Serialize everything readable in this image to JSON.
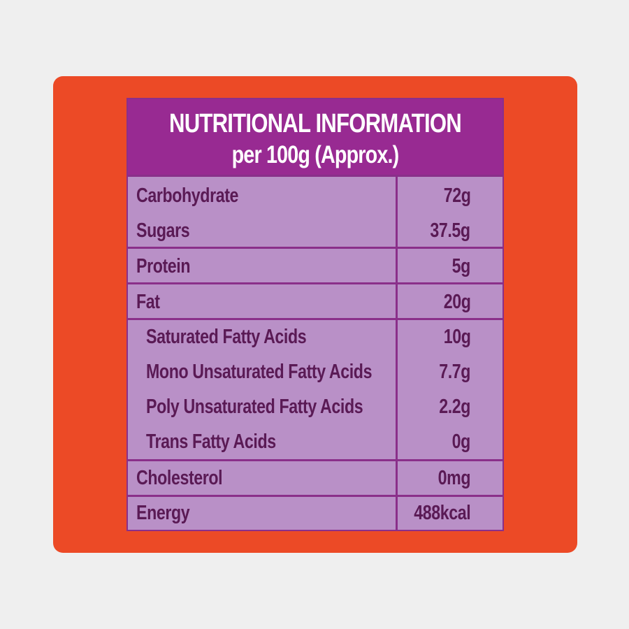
{
  "heading": {
    "line1": "NUTRITIONAL INFORMATION",
    "line2": "per 100g (Approx.)"
  },
  "rows": [
    {
      "label": "Carbohydrate",
      "value": "72g"
    },
    {
      "label": "Sugars",
      "value": "37.5g"
    },
    {
      "label": "Protein",
      "value": "5g"
    },
    {
      "label": "Fat",
      "value": "20g"
    },
    {
      "label": "Saturated Fatty Acids",
      "value": "10g"
    },
    {
      "label": "Mono Unsaturated Fatty Acids",
      "value": "7.7g"
    },
    {
      "label": "Poly Unsaturated Fatty Acids",
      "value": "2.2g"
    },
    {
      "label": "Trans Fatty Acids",
      "value": "0g"
    },
    {
      "label": "Cholesterol",
      "value": "0mg"
    },
    {
      "label": "Energy",
      "value": "488kcal"
    }
  ],
  "colors": {
    "background": "#efefef",
    "panel": "#ec4a26",
    "header": "#982a92",
    "table_body": "#b990c7",
    "border": "#8a2f8a",
    "text": "#5a1a55"
  }
}
